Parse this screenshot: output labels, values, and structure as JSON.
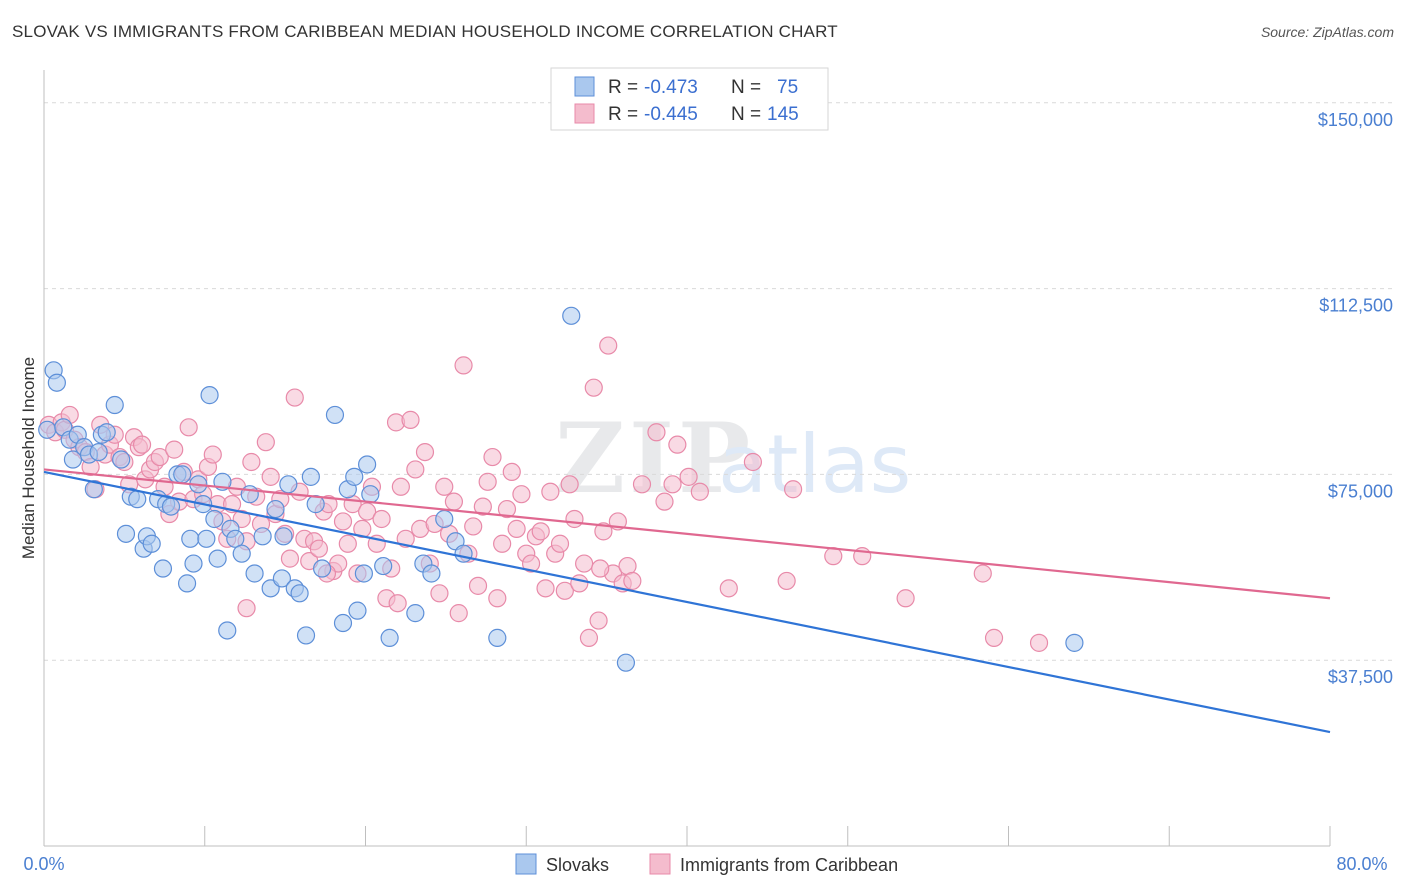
{
  "header": {
    "title": "SLOVAK VS IMMIGRANTS FROM CARIBBEAN MEDIAN HOUSEHOLD INCOME CORRELATION CHART",
    "source": "Source: ZipAtlas.com"
  },
  "watermark": {
    "zip": "ZIP",
    "atlas": "atlas"
  },
  "legend": {
    "rows": [
      {
        "r_label": "R =",
        "r_value": "-0.473",
        "n_label": "N =",
        "n_value": "75"
      },
      {
        "r_label": "R =",
        "r_value": "-0.445",
        "n_label": "N =",
        "n_value": "145"
      }
    ]
  },
  "bottom_legend": [
    "Slovaks",
    "Immigrants from Caribbean"
  ],
  "colors": {
    "slovaks_fill": "#aac8ee",
    "slovaks_stroke": "#5d8fd8",
    "slovaks_line": "#2f74d6",
    "carib_fill": "#f4bccd",
    "carib_stroke": "#e88aa9",
    "carib_line": "#e06890",
    "tick_text": "#4a7fd1",
    "grid": "#d9d9d9"
  },
  "chart_data": {
    "type": "scatter",
    "title": "SLOVAK VS IMMIGRANTS FROM CARIBBEAN MEDIAN HOUSEHOLD INCOME CORRELATION CHART",
    "xlabel": "",
    "ylabel": "Median Household Income",
    "xlim": [
      0,
      80
    ],
    "ylim": [
      0,
      155000
    ],
    "x_tick_labels": [
      "0.0%",
      "80.0%"
    ],
    "y_ticks": [
      37500,
      75000,
      112500,
      150000
    ],
    "y_tick_labels": [
      "$37,500",
      "$75,000",
      "$112,500",
      "$150,000"
    ],
    "grid": "horizontal dashed",
    "legend_position": "top-center",
    "series": [
      {
        "name": "Slovaks",
        "r": -0.473,
        "n": 75,
        "trend": {
          "x": [
            0,
            80
          ],
          "y": [
            75500,
            23000
          ]
        },
        "points": [
          [
            0.2,
            84000
          ],
          [
            0.6,
            96000
          ],
          [
            0.8,
            93500
          ],
          [
            1.2,
            84500
          ],
          [
            1.6,
            82000
          ],
          [
            1.8,
            78000
          ],
          [
            2.1,
            83000
          ],
          [
            2.5,
            80500
          ],
          [
            2.8,
            79000
          ],
          [
            3.1,
            72000
          ],
          [
            3.4,
            79500
          ],
          [
            3.6,
            83000
          ],
          [
            3.9,
            83500
          ],
          [
            4.4,
            89000
          ],
          [
            4.8,
            78000
          ],
          [
            5.1,
            63000
          ],
          [
            5.4,
            70500
          ],
          [
            5.8,
            70000
          ],
          [
            6.2,
            60000
          ],
          [
            6.4,
            62500
          ],
          [
            6.7,
            61000
          ],
          [
            7.1,
            70000
          ],
          [
            7.4,
            56000
          ],
          [
            7.6,
            69000
          ],
          [
            7.9,
            68500
          ],
          [
            8.3,
            75000
          ],
          [
            8.6,
            75000
          ],
          [
            8.9,
            53000
          ],
          [
            9.1,
            62000
          ],
          [
            9.3,
            57000
          ],
          [
            9.6,
            73000
          ],
          [
            9.9,
            69000
          ],
          [
            10.1,
            62000
          ],
          [
            10.3,
            91000
          ],
          [
            10.6,
            66000
          ],
          [
            10.8,
            58000
          ],
          [
            11.1,
            73500
          ],
          [
            11.4,
            43500
          ],
          [
            11.6,
            64000
          ],
          [
            11.9,
            62000
          ],
          [
            12.3,
            59000
          ],
          [
            12.8,
            71000
          ],
          [
            13.1,
            55000
          ],
          [
            13.6,
            62500
          ],
          [
            14.1,
            52000
          ],
          [
            14.4,
            68000
          ],
          [
            14.8,
            54000
          ],
          [
            15.2,
            73000
          ],
          [
            15.6,
            52000
          ],
          [
            15.9,
            51000
          ],
          [
            16.3,
            42500
          ],
          [
            16.6,
            74500
          ],
          [
            16.9,
            69000
          ],
          [
            17.3,
            56000
          ],
          [
            18.1,
            87000
          ],
          [
            18.6,
            45000
          ],
          [
            18.9,
            72000
          ],
          [
            19.3,
            74500
          ],
          [
            19.5,
            47500
          ],
          [
            19.9,
            55000
          ],
          [
            20.1,
            77000
          ],
          [
            20.3,
            71000
          ],
          [
            21.1,
            56500
          ],
          [
            21.5,
            42000
          ],
          [
            23.1,
            47000
          ],
          [
            23.6,
            57000
          ],
          [
            24.1,
            55000
          ],
          [
            24.9,
            66000
          ],
          [
            25.6,
            61500
          ],
          [
            26.1,
            59000
          ],
          [
            28.2,
            42000
          ],
          [
            32.8,
            107000
          ],
          [
            36.2,
            37000
          ],
          [
            64.1,
            41000
          ],
          [
            14.9,
            62500
          ]
        ]
      },
      {
        "name": "Immigrants from Caribbean",
        "r": -0.445,
        "n": 145,
        "trend": {
          "x": [
            0,
            80
          ],
          "y": [
            76000,
            50000
          ]
        },
        "points": [
          [
            0.3,
            85000
          ],
          [
            0.7,
            83500
          ],
          [
            1.1,
            85500
          ],
          [
            1.3,
            84000
          ],
          [
            1.6,
            87000
          ],
          [
            1.9,
            82000
          ],
          [
            2.2,
            80500
          ],
          [
            2.6,
            79500
          ],
          [
            2.9,
            76500
          ],
          [
            3.2,
            72000
          ],
          [
            3.5,
            85000
          ],
          [
            3.8,
            79000
          ],
          [
            4.1,
            81000
          ],
          [
            4.4,
            83000
          ],
          [
            4.7,
            78500
          ],
          [
            5.0,
            77500
          ],
          [
            5.3,
            73000
          ],
          [
            5.6,
            82500
          ],
          [
            5.9,
            80500
          ],
          [
            6.1,
            81000
          ],
          [
            6.3,
            74000
          ],
          [
            6.6,
            76000
          ],
          [
            6.9,
            77500
          ],
          [
            7.2,
            78500
          ],
          [
            7.5,
            72500
          ],
          [
            7.8,
            67000
          ],
          [
            8.1,
            80000
          ],
          [
            8.4,
            69500
          ],
          [
            8.7,
            75500
          ],
          [
            9.0,
            84500
          ],
          [
            9.3,
            70000
          ],
          [
            9.6,
            74000
          ],
          [
            9.9,
            71000
          ],
          [
            10.2,
            76500
          ],
          [
            10.5,
            79000
          ],
          [
            10.8,
            69000
          ],
          [
            11.1,
            65500
          ],
          [
            11.4,
            62000
          ],
          [
            11.7,
            69000
          ],
          [
            12.0,
            72500
          ],
          [
            12.3,
            66000
          ],
          [
            12.6,
            61500
          ],
          [
            12.9,
            77500
          ],
          [
            13.2,
            70500
          ],
          [
            13.5,
            65000
          ],
          [
            13.8,
            81500
          ],
          [
            14.1,
            74500
          ],
          [
            14.4,
            67000
          ],
          [
            14.7,
            70000
          ],
          [
            15.0,
            63000
          ],
          [
            15.3,
            58000
          ],
          [
            15.6,
            90500
          ],
          [
            15.9,
            71500
          ],
          [
            16.2,
            62000
          ],
          [
            16.5,
            57500
          ],
          [
            16.8,
            61500
          ],
          [
            17.1,
            60000
          ],
          [
            17.4,
            67500
          ],
          [
            17.7,
            69000
          ],
          [
            18.0,
            55500
          ],
          [
            18.3,
            57000
          ],
          [
            18.6,
            65500
          ],
          [
            18.9,
            61000
          ],
          [
            19.2,
            69000
          ],
          [
            19.5,
            55000
          ],
          [
            19.8,
            64000
          ],
          [
            20.1,
            67500
          ],
          [
            20.4,
            72500
          ],
          [
            20.7,
            61000
          ],
          [
            21.0,
            66000
          ],
          [
            21.3,
            50000
          ],
          [
            21.6,
            56000
          ],
          [
            21.9,
            85500
          ],
          [
            22.2,
            72500
          ],
          [
            22.5,
            62000
          ],
          [
            22.8,
            86000
          ],
          [
            23.1,
            76000
          ],
          [
            23.4,
            64000
          ],
          [
            23.7,
            79500
          ],
          [
            24.0,
            57000
          ],
          [
            24.3,
            65000
          ],
          [
            24.6,
            51000
          ],
          [
            24.9,
            72500
          ],
          [
            25.2,
            63000
          ],
          [
            25.5,
            69500
          ],
          [
            25.8,
            47000
          ],
          [
            26.1,
            97000
          ],
          [
            26.4,
            59000
          ],
          [
            26.7,
            64500
          ],
          [
            27.0,
            52500
          ],
          [
            27.3,
            68500
          ],
          [
            27.6,
            73500
          ],
          [
            27.9,
            78500
          ],
          [
            28.2,
            50000
          ],
          [
            28.5,
            61000
          ],
          [
            28.8,
            68000
          ],
          [
            29.1,
            75500
          ],
          [
            29.4,
            64000
          ],
          [
            29.7,
            71000
          ],
          [
            30.0,
            59000
          ],
          [
            30.3,
            57000
          ],
          [
            30.6,
            62500
          ],
          [
            30.9,
            63500
          ],
          [
            31.2,
            52000
          ],
          [
            31.5,
            71500
          ],
          [
            31.8,
            59000
          ],
          [
            32.1,
            61000
          ],
          [
            32.4,
            51500
          ],
          [
            32.7,
            73000
          ],
          [
            33.0,
            66000
          ],
          [
            33.3,
            53000
          ],
          [
            33.6,
            57000
          ],
          [
            33.9,
            42000
          ],
          [
            34.2,
            92500
          ],
          [
            34.5,
            45500
          ],
          [
            34.8,
            63500
          ],
          [
            35.1,
            101000
          ],
          [
            35.4,
            55000
          ],
          [
            35.7,
            65500
          ],
          [
            36.0,
            53000
          ],
          [
            36.3,
            56500
          ],
          [
            36.6,
            53500
          ],
          [
            37.2,
            73000
          ],
          [
            38.1,
            83500
          ],
          [
            38.6,
            69500
          ],
          [
            39.1,
            73000
          ],
          [
            39.4,
            81000
          ],
          [
            40.1,
            74500
          ],
          [
            40.8,
            71500
          ],
          [
            42.6,
            52000
          ],
          [
            44.1,
            77500
          ],
          [
            46.2,
            53500
          ],
          [
            46.6,
            72000
          ],
          [
            49.1,
            58500
          ],
          [
            50.9,
            58500
          ],
          [
            53.6,
            50000
          ],
          [
            58.4,
            55000
          ],
          [
            59.1,
            42000
          ],
          [
            61.9,
            41000
          ],
          [
            34.6,
            56000
          ],
          [
            17.6,
            55000
          ],
          [
            22.0,
            49000
          ],
          [
            12.6,
            48000
          ]
        ]
      }
    ]
  }
}
